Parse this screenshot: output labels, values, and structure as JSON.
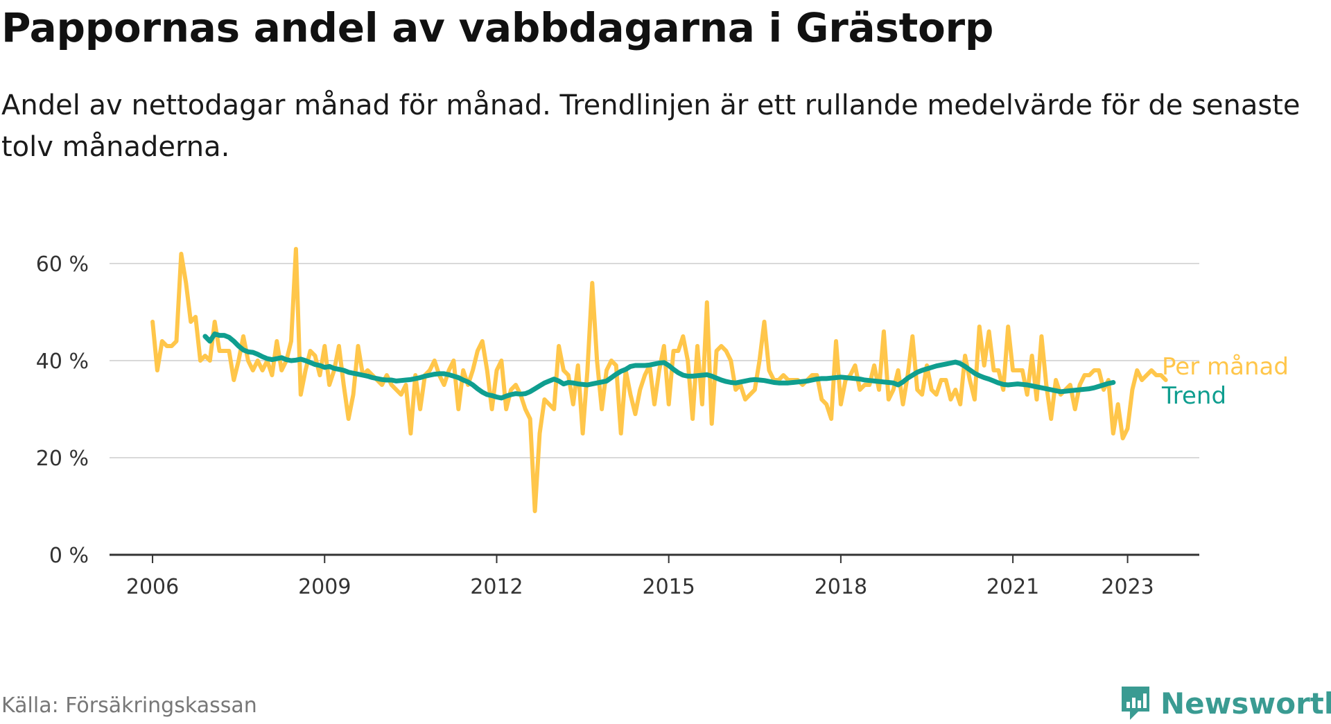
{
  "title": "Pappornas andel av vabbdagarna i Grästorp",
  "subtitle": "Andel av nettodagar månad för månad. Trendlinjen är ett rullande medelvärde för de senaste tolv månaderna.",
  "source": "Källa: Försäkringskassan",
  "brand": "Newsworthy",
  "chart_data": {
    "type": "line",
    "y_ticks": [
      0,
      20,
      40,
      60
    ],
    "y_tick_labels": [
      "0 %",
      "20 %",
      "40 %",
      "60 %"
    ],
    "x_ticks": [
      2006,
      2009,
      2012,
      2015,
      2018,
      2021,
      2023
    ],
    "x_tick_labels": [
      "2006",
      "2009",
      "2012",
      "2015",
      "2018",
      "2021",
      "2023"
    ],
    "ylim": [
      0,
      70
    ],
    "xlim": [
      2005.25,
      2024.25
    ],
    "grid": true,
    "legend": "right, at line ends",
    "colors": {
      "monthly": "#ffc64a",
      "trend": "#0f9e8f",
      "grid": "#d9d9d9",
      "axis": "#333333"
    },
    "series": [
      {
        "name": "Per månad",
        "x_start": 2006.0,
        "step": 0.08333,
        "values": [
          48,
          38,
          44,
          43,
          43,
          44,
          62,
          56,
          48,
          49,
          40,
          41,
          40,
          48,
          42,
          42,
          42,
          36,
          40,
          45,
          40,
          38,
          40,
          38,
          40,
          37,
          44,
          38,
          40,
          44,
          63,
          33,
          38,
          42,
          41,
          37,
          43,
          35,
          38,
          43,
          35,
          28,
          33,
          43,
          37,
          38,
          37,
          36,
          35,
          37,
          35,
          34,
          33,
          35,
          25,
          37,
          30,
          37,
          38,
          40,
          37,
          35,
          38,
          40,
          30,
          38,
          35,
          38,
          42,
          44,
          38,
          30,
          38,
          40,
          30,
          34,
          35,
          33,
          30,
          28,
          9,
          25,
          32,
          31,
          30,
          43,
          38,
          37,
          31,
          39,
          25,
          38,
          56,
          40,
          30,
          38,
          40,
          39,
          25,
          38,
          33,
          29,
          34,
          37,
          39,
          31,
          38,
          43,
          31,
          42,
          42,
          45,
          40,
          28,
          43,
          31,
          52,
          27,
          42,
          43,
          42,
          40,
          34,
          35,
          32,
          33,
          34,
          40,
          48,
          38,
          36,
          36,
          37,
          36,
          36,
          36,
          35,
          36,
          37,
          37,
          32,
          31,
          28,
          44,
          31,
          36,
          37,
          39,
          34,
          35,
          35,
          39,
          34,
          46,
          32,
          34,
          38,
          31,
          37,
          45,
          34,
          33,
          39,
          34,
          33,
          36,
          36,
          32,
          34,
          31,
          41,
          36,
          32,
          47,
          39,
          46,
          38,
          38,
          34,
          47,
          38,
          38,
          38,
          33,
          41,
          32,
          45,
          35,
          28,
          36,
          33,
          34,
          35,
          30,
          35,
          37,
          37,
          38,
          38,
          34,
          36,
          25,
          31,
          24,
          26,
          34,
          38,
          36,
          37,
          38,
          37,
          37,
          36
        ]
      },
      {
        "name": "Trend",
        "x_start": 2006.917,
        "step": 0.08333,
        "values": [
          45,
          44,
          45.5,
          45.2,
          45.2,
          44.8,
          44,
          43,
          42.2,
          41.8,
          41.7,
          41.3,
          40.8,
          40.4,
          40.2,
          40.4,
          40.6,
          40.2,
          40,
          40.1,
          40.3,
          40,
          39.6,
          39.2,
          39,
          38.6,
          38.8,
          38.4,
          38.2,
          38,
          37.6,
          37.4,
          37.2,
          37,
          36.8,
          36.5,
          36.3,
          36.1,
          36,
          36,
          35.8,
          35.9,
          36,
          36.1,
          36.3,
          36.5,
          36.8,
          37,
          37.2,
          37.3,
          37.3,
          37.1,
          36.8,
          36.5,
          36,
          35.6,
          35,
          34.2,
          33.5,
          33,
          32.8,
          32.5,
          32.3,
          32.7,
          33,
          33.2,
          33.1,
          33.2,
          33.6,
          34.2,
          34.8,
          35.4,
          35.8,
          36.2,
          35.8,
          35.2,
          35.5,
          35.4,
          35.2,
          35.1,
          35,
          35.2,
          35.4,
          35.6,
          35.8,
          36.5,
          37.2,
          37.8,
          38.2,
          38.8,
          39,
          39,
          39,
          39.1,
          39.3,
          39.5,
          39.6,
          39,
          38.2,
          37.5,
          37,
          36.8,
          36.8,
          36.9,
          37,
          37.1,
          36.8,
          36.4,
          36,
          35.7,
          35.5,
          35.4,
          35.6,
          35.8,
          36,
          36.1,
          36,
          35.9,
          35.7,
          35.5,
          35.4,
          35.4,
          35.4,
          35.5,
          35.6,
          35.7,
          35.8,
          36,
          36.2,
          36.3,
          36.3,
          36.4,
          36.5,
          36.6,
          36.5,
          36.4,
          36.3,
          36.2,
          36,
          35.9,
          35.8,
          35.7,
          35.6,
          35.5,
          35.4,
          35,
          35.6,
          36.4,
          37,
          37.6,
          38,
          38.3,
          38.6,
          38.9,
          39.1,
          39.3,
          39.5,
          39.7,
          39.4,
          38.8,
          38.1,
          37.4,
          36.9,
          36.5,
          36.2,
          35.8,
          35.4,
          35.1,
          35,
          35.1,
          35.2,
          35.1,
          35,
          34.8,
          34.6,
          34.4,
          34.2,
          34,
          33.8,
          33.6,
          33.7,
          33.8,
          33.9,
          34,
          34.1,
          34.2,
          34.4,
          34.7,
          35,
          35.3,
          35.5
        ]
      }
    ]
  }
}
